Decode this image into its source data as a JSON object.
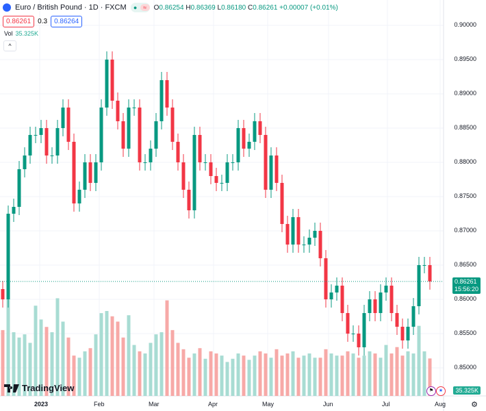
{
  "header": {
    "symbol": "Euro / British Pound · 1D · FXCM",
    "o_label": "O",
    "o": "0.86254",
    "h_label": "H",
    "h": "0.86369",
    "l_label": "L",
    "l": "0.86180",
    "c_label": "C",
    "c": "0.86261",
    "change": "+0.00007 (+0.01%)",
    "bid": "0.86261",
    "spread": "0.3",
    "ask": "0.86264",
    "vol_label": "Vol",
    "vol_value": "35.325K",
    "collapse": "^"
  },
  "price_tag": {
    "price": "0.86261",
    "countdown": "15:56:20"
  },
  "volume_tag": "35.325K",
  "logo": "TradingView",
  "colors": {
    "up": "#089981",
    "down": "#f23645",
    "up_vol": "#a8dcd3",
    "down_vol": "#f7a9a7"
  },
  "chart_data": {
    "type": "candlestick",
    "yticks": [
      "0.90000",
      "0.89500",
      "0.89000",
      "0.88500",
      "0.88000",
      "0.87500",
      "0.87000",
      "0.86500",
      "0.86000",
      "0.85500",
      "0.85000"
    ],
    "ylim": [
      0.847,
      0.901
    ],
    "xticks": [
      "2023",
      "Feb",
      "Mar",
      "Apr",
      "May",
      "Jun",
      "Jul",
      "Aug"
    ],
    "open_first": 0.8615,
    "close": [
      0.86,
      0.8725,
      0.8735,
      0.879,
      0.881,
      0.884,
      0.884,
      0.885,
      0.881,
      0.881,
      0.885,
      0.888,
      0.883,
      0.874,
      0.876,
      0.88,
      0.877,
      0.88,
      0.888,
      0.895,
      0.889,
      0.886,
      0.882,
      0.888,
      0.888,
      0.88,
      0.88,
      0.882,
      0.886,
      0.892,
      0.888,
      0.883,
      0.88,
      0.876,
      0.873,
      0.884,
      0.88,
      0.88,
      0.878,
      0.877,
      0.877,
      0.88,
      0.88,
      0.885,
      0.882,
      0.883,
      0.886,
      0.884,
      0.876,
      0.881,
      0.877,
      0.871,
      0.868,
      0.872,
      0.868,
      0.868,
      0.869,
      0.87,
      0.866,
      0.86,
      0.861,
      0.862,
      0.858,
      0.855,
      0.855,
      0.853,
      0.858,
      0.86,
      0.858,
      0.861,
      0.862,
      0.858,
      0.856,
      0.854,
      0.856,
      0.859,
      0.865,
      0.865,
      0.86261
    ],
    "volume_k": [
      62,
      92,
      60,
      55,
      58,
      50,
      85,
      72,
      65,
      60,
      92,
      70,
      55,
      38,
      36,
      42,
      45,
      58,
      78,
      80,
      75,
      70,
      55,
      76,
      48,
      42,
      40,
      50,
      58,
      60,
      90,
      62,
      50,
      44,
      36,
      40,
      45,
      35,
      42,
      40,
      38,
      32,
      35,
      40,
      38,
      34,
      38,
      42,
      40,
      36,
      44,
      38,
      40,
      42,
      36,
      38,
      40,
      36,
      36,
      44,
      40,
      38,
      38,
      42,
      40,
      36,
      38,
      42,
      40,
      36,
      48,
      40,
      46,
      38,
      42,
      40,
      66,
      42,
      35.3
    ]
  }
}
